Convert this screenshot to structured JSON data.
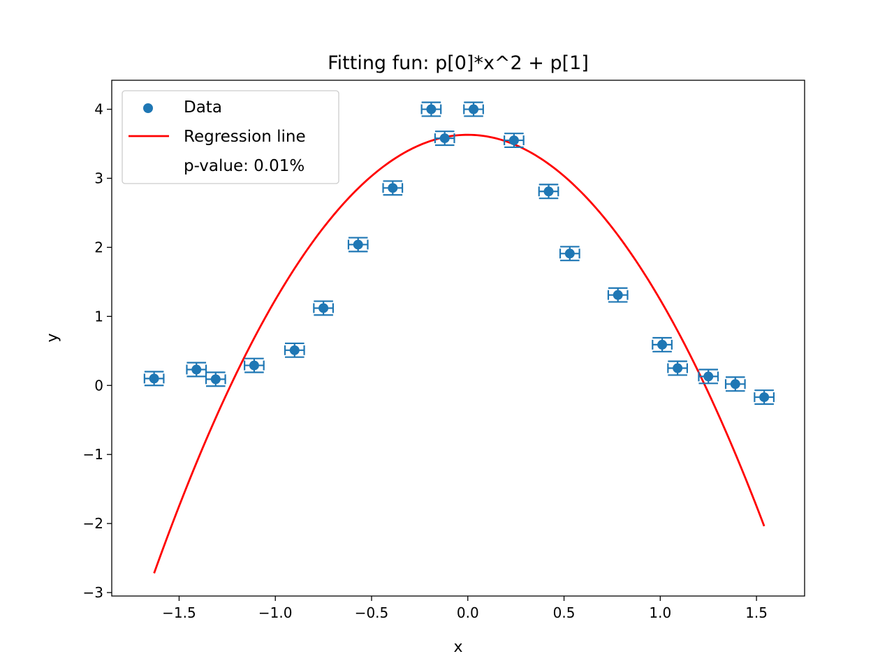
{
  "chart_data": {
    "type": "scatter",
    "title": "Fitting fun: p[0]*x^2 + p[1]",
    "xlabel": "x",
    "ylabel": "y",
    "xlim": [
      -1.85,
      1.75
    ],
    "ylim": [
      -3.05,
      4.42
    ],
    "xticks": [
      -1.5,
      -1.0,
      -0.5,
      0.0,
      0.5,
      1.0,
      1.5
    ],
    "xtick_labels": [
      "−1.5",
      "−1.0",
      "−0.5",
      "0.0",
      "0.5",
      "1.0",
      "1.5"
    ],
    "yticks": [
      -3,
      -2,
      -1,
      0,
      1,
      2,
      3,
      4
    ],
    "ytick_labels": [
      "−3",
      "−2",
      "−1",
      "0",
      "1",
      "2",
      "3",
      "4"
    ],
    "grid": false,
    "legend": {
      "placement": "top-left",
      "entries": [
        {
          "label": "Data",
          "kind": "marker"
        },
        {
          "label": "Regression line",
          "kind": "line"
        },
        {
          "label": "p-value: 0.01%",
          "kind": "none"
        }
      ]
    },
    "series": [
      {
        "name": "Data",
        "kind": "scatter_errorbar",
        "color": "#1f77b4",
        "xerr": 0.05,
        "yerr": 0.1,
        "x": [
          -1.63,
          -1.41,
          -1.31,
          -1.11,
          -0.9,
          -0.75,
          -0.57,
          -0.39,
          -0.19,
          -0.12,
          0.03,
          0.24,
          0.42,
          0.53,
          0.78,
          1.01,
          1.09,
          1.25,
          1.39,
          1.54
        ],
        "y": [
          0.1,
          0.23,
          0.09,
          0.29,
          0.51,
          1.12,
          2.04,
          2.86,
          4.0,
          3.58,
          4.0,
          3.55,
          2.81,
          1.91,
          1.31,
          0.59,
          0.25,
          0.13,
          0.02,
          -0.17
        ]
      },
      {
        "name": "Regression line",
        "kind": "line",
        "color": "#ff0000",
        "function": "p[0]*x^2 + p[1]",
        "params": [
          -2.39,
          3.63
        ],
        "x_range": [
          -1.63,
          1.54
        ]
      }
    ]
  }
}
